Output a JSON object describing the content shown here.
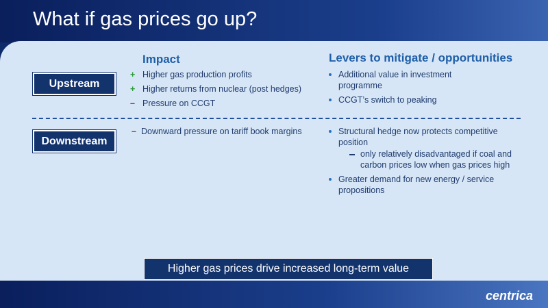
{
  "title": "What if gas prices go up?",
  "headers": {
    "impact": "Impact",
    "levers": "Levers to mitigate / opportunities"
  },
  "rows": [
    {
      "label": "Upstream",
      "impacts": [
        {
          "sign": "+",
          "text": "Higher gas production profits"
        },
        {
          "sign": "+",
          "text": "Higher returns from nuclear (post hedges)"
        },
        {
          "sign": "–",
          "text": "Pressure on CCGT"
        }
      ],
      "levers": [
        {
          "text": "Additional value in investment programme"
        },
        {
          "text": "CCGT’s switch to peaking"
        }
      ]
    },
    {
      "label": "Downstream",
      "impacts": [
        {
          "sign": "–",
          "text": "Downward pressure on tariff book margins"
        }
      ],
      "levers": [
        {
          "text": "Structural hedge now protects competitive position",
          "sub": "only relatively disadvantaged if coal and carbon prices low when gas prices high"
        },
        {
          "text": "Greater demand for new energy / service propositions"
        }
      ]
    }
  ],
  "conclusion": "Higher gas prices drive increased long-term value",
  "logo": "centrica"
}
